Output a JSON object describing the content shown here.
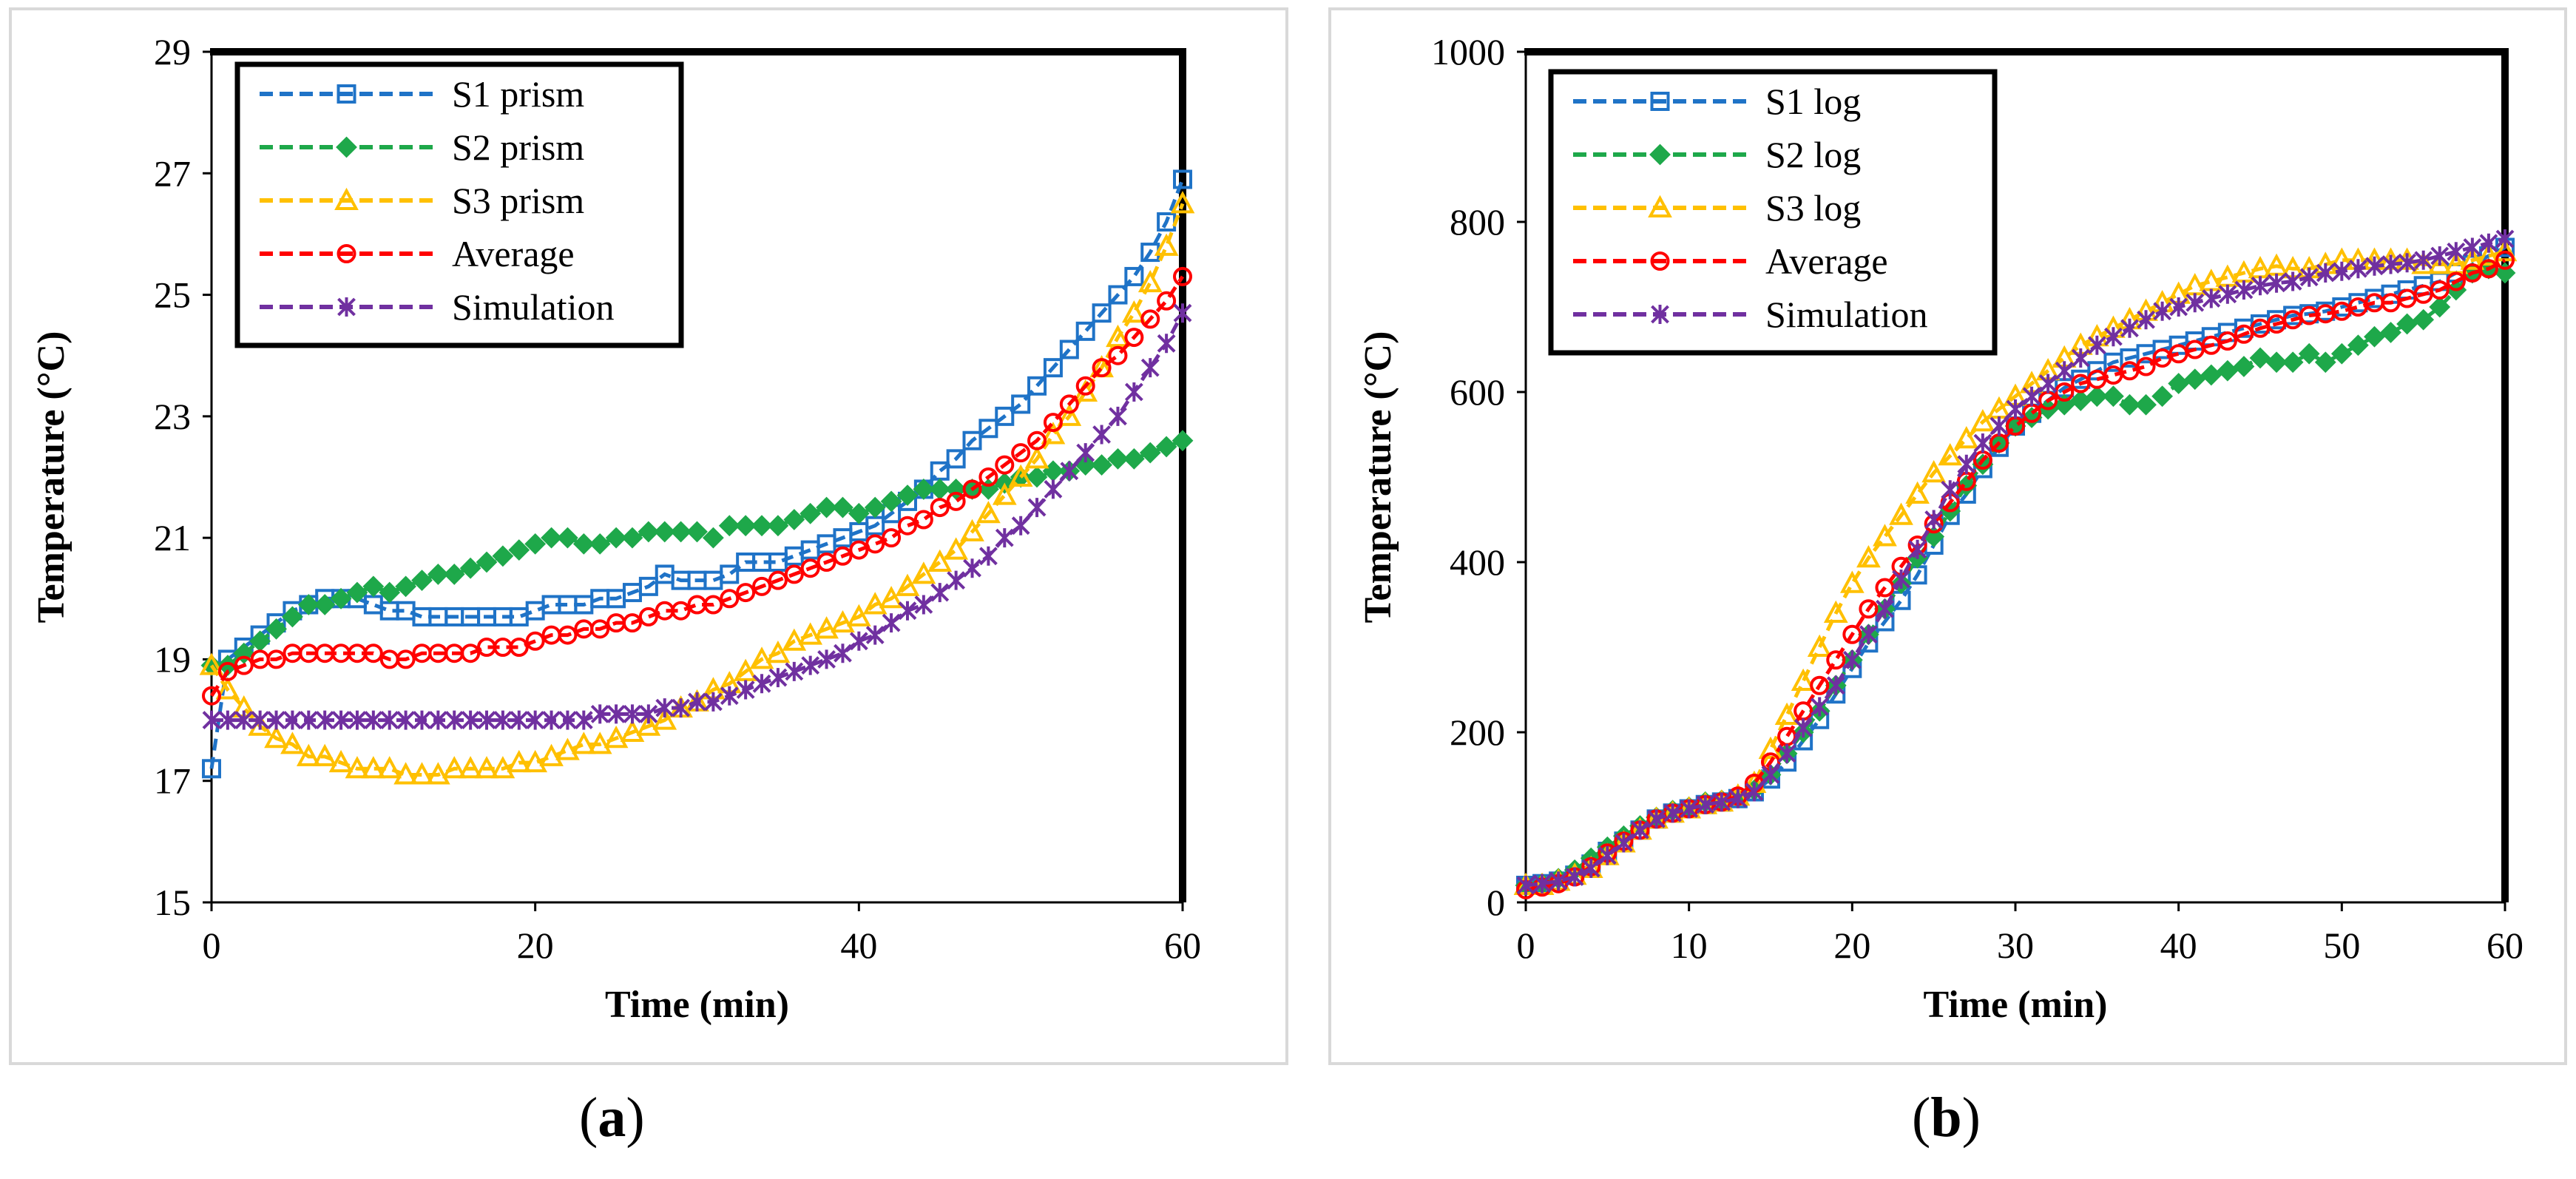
{
  "captions": {
    "a_open": "(",
    "a_letter": "a",
    "a_close": ")",
    "b_open": "(",
    "b_letter": "b",
    "b_close": ")"
  },
  "colors": {
    "s1": "#1f73c7",
    "s2": "#1ea84a",
    "s3": "#ffc000",
    "avg": "#ff0000",
    "sim": "#7030a0"
  },
  "chart_data": [
    {
      "type": "line",
      "xlabel": "Time (min)",
      "ylabel": "Temperature (°C)",
      "xlim": [
        0,
        60
      ],
      "ylim": [
        15,
        29
      ],
      "xticks": [
        0,
        20,
        40,
        60
      ],
      "yticks": [
        15,
        17,
        19,
        21,
        23,
        25,
        27,
        29
      ],
      "grid": false,
      "legend": "top-left",
      "x": [
        0,
        1,
        2,
        3,
        4,
        5,
        6,
        7,
        8,
        9,
        10,
        11,
        12,
        13,
        14,
        15,
        16,
        17,
        18,
        19,
        20,
        21,
        22,
        23,
        24,
        25,
        26,
        27,
        28,
        29,
        30,
        31,
        32,
        33,
        34,
        35,
        36,
        37,
        38,
        39,
        40,
        41,
        42,
        43,
        44,
        45,
        46,
        47,
        48,
        49,
        50,
        51,
        52,
        53,
        54,
        55,
        56,
        57,
        58,
        59,
        60
      ],
      "series": [
        {
          "name": "S1 prism",
          "marker": "square",
          "color": "#1f73c7",
          "values": [
            17.2,
            19.0,
            19.2,
            19.4,
            19.6,
            19.8,
            19.9,
            20.0,
            20.0,
            20.0,
            19.9,
            19.8,
            19.8,
            19.7,
            19.7,
            19.7,
            19.7,
            19.7,
            19.7,
            19.7,
            19.8,
            19.9,
            19.9,
            19.9,
            20.0,
            20.0,
            20.1,
            20.2,
            20.4,
            20.3,
            20.3,
            20.3,
            20.4,
            20.6,
            20.6,
            20.6,
            20.7,
            20.8,
            20.9,
            21.0,
            21.1,
            21.2,
            21.4,
            21.6,
            21.8,
            22.1,
            22.3,
            22.6,
            22.8,
            23.0,
            23.2,
            23.5,
            23.8,
            24.1,
            24.4,
            24.7,
            25.0,
            25.3,
            25.7,
            26.2,
            26.9
          ]
        },
        {
          "name": "S2 prism",
          "marker": "diamond",
          "color": "#1ea84a",
          "values": [
            18.9,
            18.9,
            19.1,
            19.3,
            19.5,
            19.7,
            19.9,
            19.9,
            20.0,
            20.1,
            20.2,
            20.1,
            20.2,
            20.3,
            20.4,
            20.4,
            20.5,
            20.6,
            20.7,
            20.8,
            20.9,
            21.0,
            21.0,
            20.9,
            20.9,
            21.0,
            21.0,
            21.1,
            21.1,
            21.1,
            21.1,
            21.0,
            21.2,
            21.2,
            21.2,
            21.2,
            21.3,
            21.4,
            21.5,
            21.5,
            21.4,
            21.5,
            21.6,
            21.7,
            21.8,
            21.8,
            21.8,
            21.8,
            21.8,
            21.9,
            22.0,
            22.0,
            22.1,
            22.1,
            22.2,
            22.2,
            22.3,
            22.3,
            22.4,
            22.5,
            22.6
          ]
        },
        {
          "name": "S3 prism",
          "marker": "triangle",
          "color": "#ffc000",
          "values": [
            18.9,
            18.5,
            18.2,
            17.9,
            17.7,
            17.6,
            17.4,
            17.4,
            17.3,
            17.2,
            17.2,
            17.2,
            17.1,
            17.1,
            17.1,
            17.2,
            17.2,
            17.2,
            17.2,
            17.3,
            17.3,
            17.4,
            17.5,
            17.6,
            17.6,
            17.7,
            17.8,
            17.9,
            18.0,
            18.2,
            18.3,
            18.5,
            18.6,
            18.8,
            19.0,
            19.1,
            19.3,
            19.4,
            19.5,
            19.6,
            19.7,
            19.9,
            20.0,
            20.2,
            20.4,
            20.6,
            20.8,
            21.1,
            21.4,
            21.7,
            22.0,
            22.3,
            22.7,
            23.0,
            23.4,
            23.8,
            24.3,
            24.7,
            25.2,
            25.8,
            26.5
          ]
        },
        {
          "name": "Average",
          "marker": "circle",
          "color": "#ff0000",
          "values": [
            18.4,
            18.8,
            18.9,
            19.0,
            19.0,
            19.1,
            19.1,
            19.1,
            19.1,
            19.1,
            19.1,
            19.0,
            19.0,
            19.1,
            19.1,
            19.1,
            19.1,
            19.2,
            19.2,
            19.2,
            19.3,
            19.4,
            19.4,
            19.5,
            19.5,
            19.6,
            19.6,
            19.7,
            19.8,
            19.8,
            19.9,
            19.9,
            20.0,
            20.1,
            20.2,
            20.3,
            20.4,
            20.5,
            20.6,
            20.7,
            20.8,
            20.9,
            21.0,
            21.2,
            21.3,
            21.5,
            21.6,
            21.8,
            22.0,
            22.2,
            22.4,
            22.6,
            22.9,
            23.2,
            23.5,
            23.8,
            24.0,
            24.3,
            24.6,
            24.9,
            25.3
          ]
        },
        {
          "name": "Simulation",
          "marker": "star",
          "color": "#7030a0",
          "values": [
            18.0,
            18.0,
            18.0,
            18.0,
            18.0,
            18.0,
            18.0,
            18.0,
            18.0,
            18.0,
            18.0,
            18.0,
            18.0,
            18.0,
            18.0,
            18.0,
            18.0,
            18.0,
            18.0,
            18.0,
            18.0,
            18.0,
            18.0,
            18.0,
            18.1,
            18.1,
            18.1,
            18.1,
            18.2,
            18.2,
            18.3,
            18.3,
            18.4,
            18.5,
            18.6,
            18.7,
            18.8,
            18.9,
            19.0,
            19.1,
            19.3,
            19.4,
            19.6,
            19.8,
            19.9,
            20.1,
            20.3,
            20.5,
            20.7,
            21.0,
            21.2,
            21.5,
            21.8,
            22.1,
            22.4,
            22.7,
            23.0,
            23.4,
            23.8,
            24.2,
            24.7
          ]
        }
      ]
    },
    {
      "type": "line",
      "xlabel": "Time (min)",
      "ylabel": "Temperature (°C)",
      "xlim": [
        0,
        60
      ],
      "ylim": [
        0,
        1000
      ],
      "xticks": [
        0,
        10,
        20,
        30,
        40,
        50,
        60
      ],
      "yticks": [
        0,
        200,
        400,
        600,
        800,
        1000
      ],
      "grid": false,
      "legend": "top-left",
      "x": [
        0,
        1,
        2,
        3,
        4,
        5,
        6,
        7,
        8,
        9,
        10,
        11,
        12,
        13,
        14,
        15,
        16,
        17,
        18,
        19,
        20,
        21,
        22,
        23,
        24,
        25,
        26,
        27,
        28,
        29,
        30,
        31,
        32,
        33,
        34,
        35,
        36,
        37,
        38,
        39,
        40,
        41,
        42,
        43,
        44,
        45,
        46,
        47,
        48,
        49,
        50,
        51,
        52,
        53,
        54,
        55,
        56,
        57,
        58,
        59,
        60
      ],
      "series": [
        {
          "name": "S1 log",
          "marker": "square",
          "color": "#1f73c7",
          "values": [
            20,
            22,
            25,
            32,
            45,
            60,
            72,
            85,
            98,
            105,
            110,
            115,
            118,
            122,
            130,
            145,
            165,
            190,
            215,
            245,
            275,
            305,
            330,
            355,
            385,
            420,
            455,
            480,
            510,
            535,
            560,
            575,
            590,
            605,
            615,
            625,
            635,
            640,
            645,
            650,
            655,
            660,
            665,
            670,
            675,
            680,
            685,
            690,
            692,
            695,
            700,
            705,
            710,
            715,
            720,
            725,
            730,
            740,
            750,
            760,
            770
          ]
        },
        {
          "name": "S2 log",
          "marker": "diamond",
          "color": "#1ea84a",
          "values": [
            20,
            22,
            28,
            38,
            52,
            65,
            78,
            90,
            100,
            108,
            112,
            118,
            120,
            125,
            132,
            150,
            175,
            200,
            225,
            255,
            285,
            315,
            345,
            375,
            405,
            430,
            460,
            490,
            515,
            540,
            560,
            570,
            580,
            585,
            590,
            595,
            595,
            585,
            585,
            595,
            610,
            615,
            620,
            625,
            630,
            640,
            635,
            635,
            645,
            635,
            645,
            655,
            665,
            670,
            680,
            685,
            700,
            720,
            740,
            745,
            740
          ]
        },
        {
          "name": "S3 log",
          "marker": "triangle",
          "color": "#ffc000",
          "values": [
            20,
            20,
            25,
            32,
            40,
            55,
            70,
            85,
            98,
            105,
            110,
            115,
            118,
            125,
            140,
            180,
            220,
            260,
            300,
            340,
            375,
            405,
            430,
            455,
            480,
            505,
            525,
            545,
            565,
            580,
            595,
            610,
            625,
            640,
            655,
            665,
            675,
            685,
            695,
            705,
            715,
            725,
            730,
            735,
            740,
            745,
            748,
            745,
            745,
            750,
            755,
            755,
            755,
            755,
            755,
            750,
            750,
            750,
            755,
            760,
            765
          ]
        },
        {
          "name": "Average",
          "marker": "circle",
          "color": "#ff0000",
          "values": [
            15,
            18,
            22,
            30,
            42,
            58,
            72,
            85,
            98,
            105,
            110,
            115,
            118,
            125,
            140,
            165,
            195,
            225,
            255,
            285,
            315,
            345,
            370,
            395,
            420,
            445,
            470,
            495,
            520,
            540,
            560,
            575,
            590,
            600,
            610,
            615,
            620,
            625,
            630,
            640,
            645,
            650,
            655,
            660,
            668,
            675,
            680,
            685,
            690,
            692,
            695,
            700,
            705,
            705,
            710,
            715,
            720,
            730,
            740,
            745,
            755
          ]
        },
        {
          "name": "Simulation",
          "marker": "star",
          "color": "#7030a0",
          "values": [
            20,
            22,
            25,
            30,
            40,
            55,
            70,
            85,
            98,
            105,
            110,
            115,
            118,
            122,
            130,
            150,
            175,
            205,
            230,
            255,
            285,
            315,
            345,
            380,
            415,
            450,
            485,
            515,
            540,
            560,
            580,
            595,
            610,
            625,
            640,
            655,
            665,
            675,
            685,
            695,
            700,
            705,
            710,
            715,
            720,
            725,
            728,
            730,
            735,
            740,
            742,
            745,
            748,
            750,
            752,
            755,
            760,
            765,
            770,
            775,
            780
          ]
        }
      ]
    }
  ]
}
